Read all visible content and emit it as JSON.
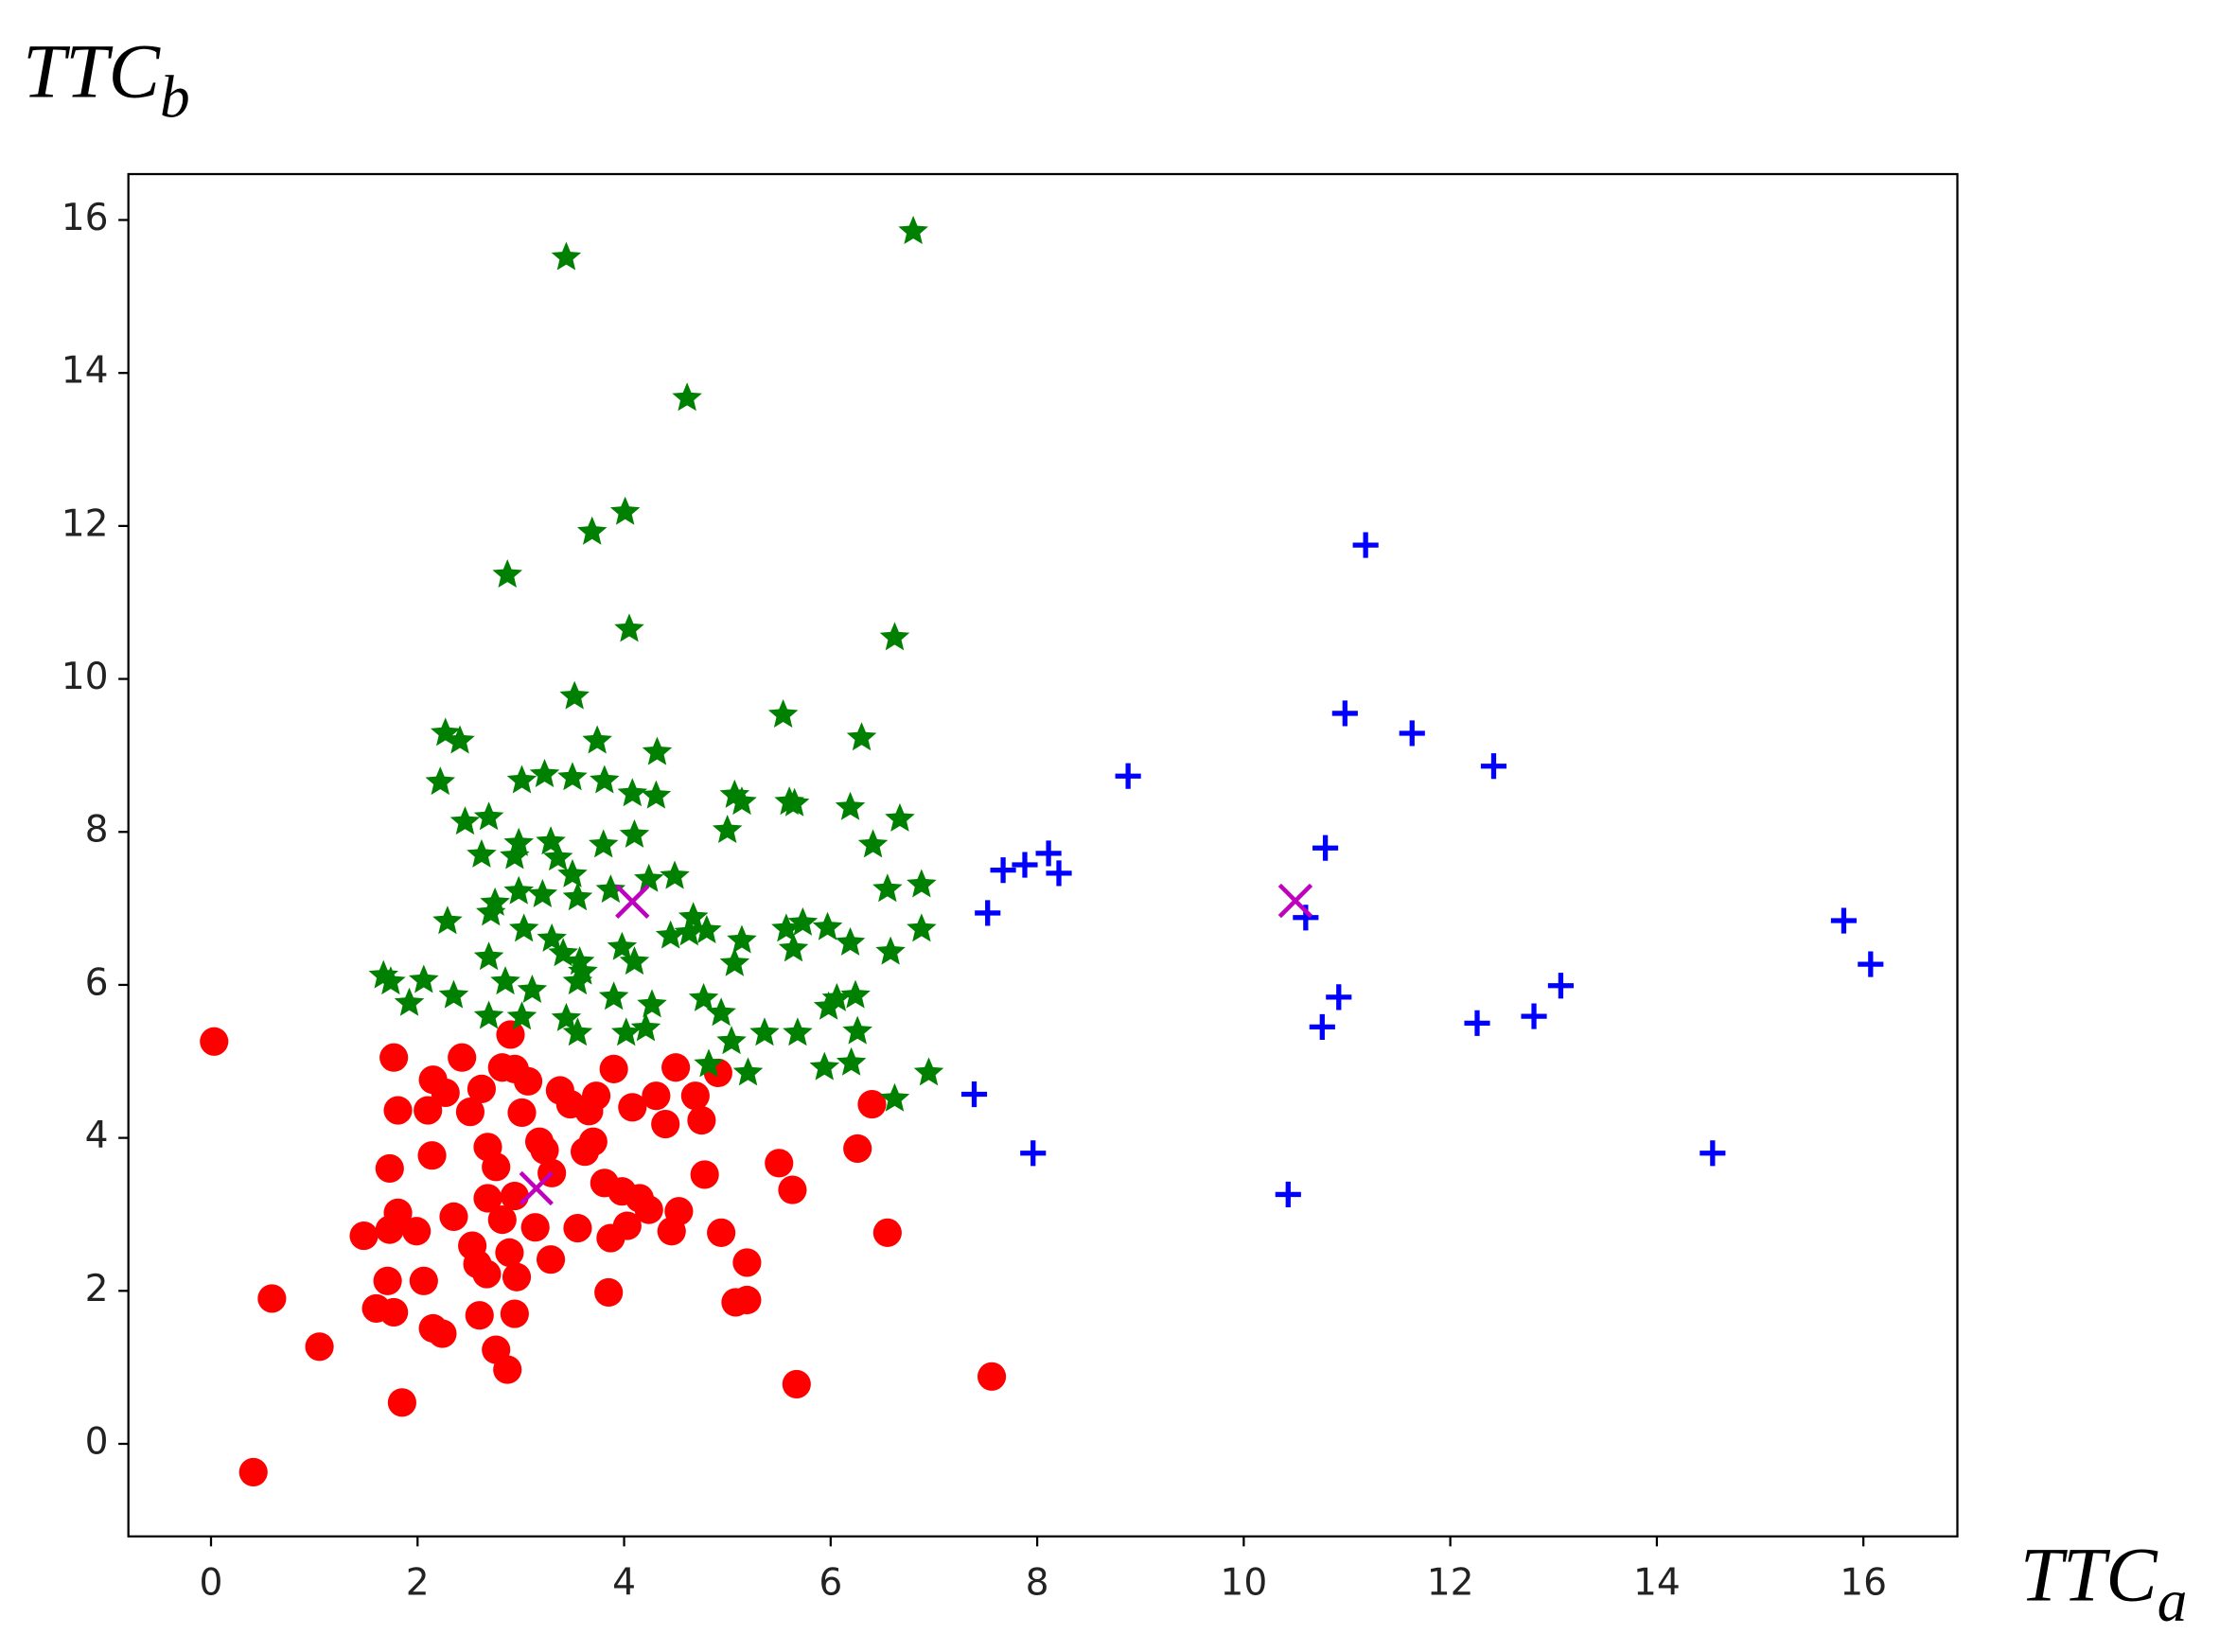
{
  "chart_data": {
    "type": "scatter",
    "xlabel": {
      "main": "TTC",
      "sub": "a"
    },
    "ylabel": {
      "main": "TTC",
      "sub": "b"
    },
    "xlim": [
      -0.8,
      16.91
    ],
    "ylim": [
      -1.21,
      16.6
    ],
    "xticks": [
      0,
      2,
      4,
      6,
      8,
      10,
      12,
      14,
      16
    ],
    "yticks": [
      0,
      2,
      4,
      6,
      8,
      10,
      12,
      14,
      16
    ],
    "series": [
      {
        "color": "#ff0000",
        "marker": "circle",
        "x": [
          0.03,
          0.41,
          0.59,
          1.05,
          1.48,
          1.73,
          1.77,
          1.81,
          1.73,
          1.81,
          1.71,
          1.6,
          1.77,
          1.85,
          1.99,
          2.06,
          2.14,
          2.1,
          2.15,
          2.27,
          2.35,
          2.15,
          2.24,
          2.43,
          2.51,
          2.62,
          2.53,
          2.58,
          2.68,
          2.6,
          2.76,
          2.87,
          2.82,
          2.9,
          2.94,
          2.76,
          2.94,
          3.01,
          3.07,
          2.82,
          2.89,
          2.96,
          2.94,
          3.14,
          3.18,
          3.23,
          3.29,
          3.38,
          3.48,
          3.55,
          3.62,
          3.66,
          3.73,
          3.81,
          3.9,
          3.87,
          3.85,
          3.98,
          4.08,
          4.03,
          4.15,
          4.24,
          4.31,
          4.4,
          4.5,
          4.53,
          4.46,
          4.69,
          4.75,
          4.78,
          4.91,
          4.94,
          5.19,
          5.08,
          5.19,
          5.5,
          5.63,
          5.67,
          6.26,
          6.4,
          6.55,
          7.56,
          2.67,
          2.68,
          3.3,
          3.7
        ],
        "values": [
          5.26,
          -0.37,
          1.9,
          1.27,
          2.72,
          2.8,
          5.05,
          4.36,
          3.6,
          3.02,
          2.13,
          1.77,
          1.72,
          0.54,
          2.78,
          2.13,
          3.77,
          4.36,
          4.76,
          4.59,
          2.97,
          1.51,
          1.44,
          5.05,
          4.34,
          4.64,
          2.59,
          2.35,
          3.88,
          1.68,
          1.23,
          0.97,
          4.92,
          5.35,
          4.9,
          3.62,
          3.24,
          4.33,
          4.74,
          2.93,
          2.5,
          2.18,
          1.7,
          2.83,
          3.95,
          3.84,
          2.41,
          4.62,
          4.44,
          2.82,
          3.82,
          4.35,
          4.55,
          3.41,
          4.9,
          2.69,
          1.98,
          3.3,
          4.4,
          2.85,
          3.21,
          3.06,
          4.55,
          4.18,
          4.92,
          3.04,
          2.78,
          4.55,
          4.23,
          3.52,
          4.85,
          2.76,
          2.37,
          1.85,
          1.88,
          3.67,
          3.32,
          0.78,
          3.86,
          4.44,
          2.76,
          0.88,
          2.22,
          3.21,
          3.54,
          3.95
        ]
      },
      {
        "color": "#008000",
        "marker": "star",
        "x": [
          6.8,
          3.44,
          4.61,
          4.01,
          3.69,
          2.87,
          4.05,
          6.62,
          3.52,
          5.54,
          2.27,
          2.41,
          3.74,
          6.3,
          4.32,
          2.22,
          3.01,
          3.23,
          3.5,
          3.81,
          4.31,
          5.07,
          5.14,
          5.6,
          5.65,
          6.19,
          4.08,
          5.0,
          2.46,
          2.69,
          6.67,
          2.98,
          3.29,
          3.8,
          4.1,
          6.41,
          2.62,
          3.36,
          2.94,
          3.5,
          4.49,
          4.24,
          6.88,
          6.55,
          2.98,
          3.21,
          3.55,
          3.87,
          2.75,
          2.71,
          2.29,
          4.67,
          3.03,
          4.63,
          4.8,
          5.57,
          5.73,
          5.97,
          6.88,
          3.3,
          4.45,
          5.14,
          6.19,
          3.41,
          3.57,
          2.69,
          3.98,
          5.64,
          6.58,
          1.67,
          1.74,
          2.06,
          2.85,
          3.6,
          4.1,
          5.07,
          3.55,
          2.35,
          3.11,
          3.9,
          6.06,
          6.24,
          1.92,
          5.98,
          4.27,
          4.77,
          2.69,
          3.01,
          3.44,
          4.94,
          4.02,
          4.21,
          5.36,
          5.68,
          6.26,
          3.55,
          5.04,
          5.2,
          5.94,
          6.2,
          6.95,
          6.62,
          4.82
        ],
        "values": [
          15.85,
          15.51,
          13.67,
          12.18,
          11.92,
          11.36,
          10.65,
          10.54,
          9.77,
          9.53,
          9.29,
          9.19,
          9.19,
          9.23,
          9.04,
          8.65,
          8.67,
          8.75,
          8.71,
          8.67,
          8.47,
          8.48,
          8.39,
          8.39,
          8.37,
          8.32,
          8.5,
          8.02,
          8.13,
          8.19,
          8.17,
          7.85,
          7.87,
          7.83,
          7.96,
          7.83,
          7.7,
          7.66,
          7.68,
          7.44,
          7.42,
          7.38,
          7.31,
          7.25,
          7.22,
          7.18,
          7.14,
          7.24,
          7.07,
          6.94,
          6.83,
          6.88,
          6.73,
          6.68,
          6.71,
          6.73,
          6.81,
          6.75,
          6.73,
          6.6,
          6.64,
          6.58,
          6.55,
          6.41,
          6.3,
          6.36,
          6.49,
          6.47,
          6.43,
          6.12,
          6.04,
          6.06,
          6.04,
          6.17,
          6.3,
          6.28,
          6.04,
          5.86,
          5.93,
          5.84,
          5.82,
          5.86,
          5.76,
          5.71,
          5.74,
          5.82,
          5.59,
          5.58,
          5.56,
          5.63,
          5.37,
          5.43,
          5.37,
          5.37,
          5.39,
          5.37,
          5.26,
          4.85,
          4.92,
          4.98,
          4.85,
          4.51,
          4.96
        ]
      },
      {
        "color": "#0000ff",
        "marker": "plus",
        "x": [
          11.18,
          10.98,
          11.63,
          12.42,
          8.88,
          10.79,
          8.11,
          7.67,
          7.88,
          8.21,
          7.52,
          10.6,
          15.81,
          16.07,
          13.07,
          10.92,
          10.76,
          12.26,
          12.81,
          7.39,
          7.96,
          14.54,
          10.43
        ],
        "values": [
          11.75,
          9.55,
          9.29,
          8.86,
          8.73,
          7.79,
          7.72,
          7.5,
          7.57,
          7.46,
          6.94,
          6.88,
          6.84,
          6.27,
          5.99,
          5.84,
          5.45,
          5.5,
          5.59,
          4.57,
          3.8,
          3.8,
          3.26
        ]
      },
      {
        "color": "#bf00bf",
        "marker": "x",
        "x": [
          4.08,
          10.5,
          3.15
        ],
        "values": [
          7.09,
          7.1,
          3.34
        ]
      }
    ]
  }
}
